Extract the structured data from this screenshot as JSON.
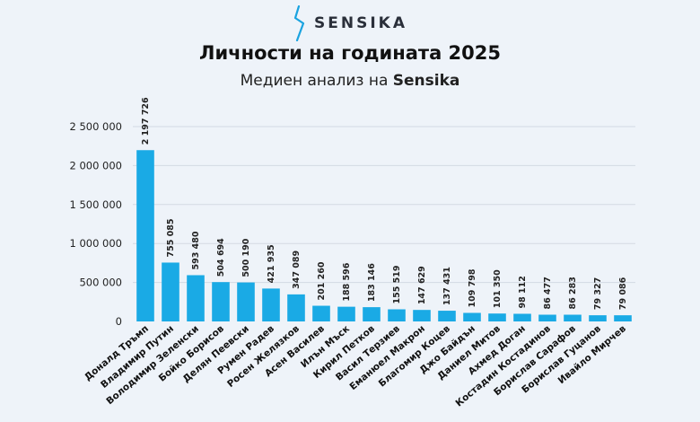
{
  "brand": {
    "name": "SENSIKA",
    "logo_color": "#1aa3e0"
  },
  "header": {
    "title": "Личности на годината 2025",
    "subtitle_prefix": "Медиен анализ на",
    "subtitle_brand": "Sensika"
  },
  "chart_data": {
    "type": "bar",
    "categories": [
      "Доналд Тръмп",
      "Владимир Путин",
      "Володимир Зеленски",
      "Бойко Борисов",
      "Делян Пеевски",
      "Румен Радев",
      "Росен Желязков",
      "Асен Василев",
      "Илън Мъск",
      "Кирил Петков",
      "Васил Терзиев",
      "Еманюел Макрон",
      "Благомир Коцев",
      "Джо Байдън",
      "Даниел Митов",
      "Ахмед Доган",
      "Костадин Костадинов",
      "Борислав Сарафов",
      "Борислав Гуцанов",
      "Ивайло Мирчев"
    ],
    "values": [
      2197726,
      755085,
      593480,
      504694,
      500190,
      421935,
      347089,
      201260,
      188596,
      183146,
      155519,
      147629,
      137431,
      109798,
      101350,
      98112,
      86477,
      86283,
      79327,
      79086
    ],
    "value_labels": [
      "2 197 726",
      "755 085",
      "593 480",
      "504 694",
      "500 190",
      "421 935",
      "347 089",
      "201 260",
      "188 596",
      "183 146",
      "155 519",
      "147 629",
      "137 431",
      "109 798",
      "101 350",
      "98 112",
      "86 477",
      "86 283",
      "79 327",
      "79 086"
    ],
    "yticks": [
      0,
      500000,
      1000000,
      1500000,
      2000000,
      2500000
    ],
    "ytick_labels": [
      "0",
      "500 000",
      "1 000 000",
      "1 500 000",
      "2 000 000",
      "2 500 000"
    ],
    "ylim": [
      0,
      2500000
    ],
    "grid": true,
    "bar_color": "#1aaae5",
    "grid_color": "#d3dae3"
  }
}
